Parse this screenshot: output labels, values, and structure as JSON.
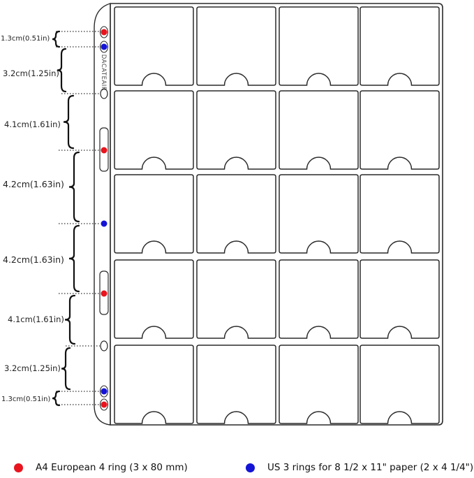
{
  "brand_text": "DACATEAIR",
  "colors": {
    "red": "#e8141e",
    "blue": "#1414d6",
    "outline": "#2a2a2a"
  },
  "grid": {
    "columns": 4,
    "rows": 5
  },
  "measurements": [
    {
      "label": "1.3cm(0.51in)"
    },
    {
      "label": "3.2cm(1.25in)"
    },
    {
      "label": "4.1cm(1.61in)"
    },
    {
      "label": "4.2cm(1.63in)"
    },
    {
      "label": "4.2cm(1.63in)"
    },
    {
      "label": "4.1cm(1.61in)"
    },
    {
      "label": "3.2cm(1.25in)"
    },
    {
      "label": "1.3cm(0.51in)"
    }
  ],
  "legend": [
    {
      "label": "A4 European 4 ring (3 x 80 mm)",
      "color": "#e8141e"
    },
    {
      "label": "US 3 rings for 8 1/2 x 11\" paper (2 x 4 1/4\")",
      "color": "#1414d6"
    }
  ]
}
